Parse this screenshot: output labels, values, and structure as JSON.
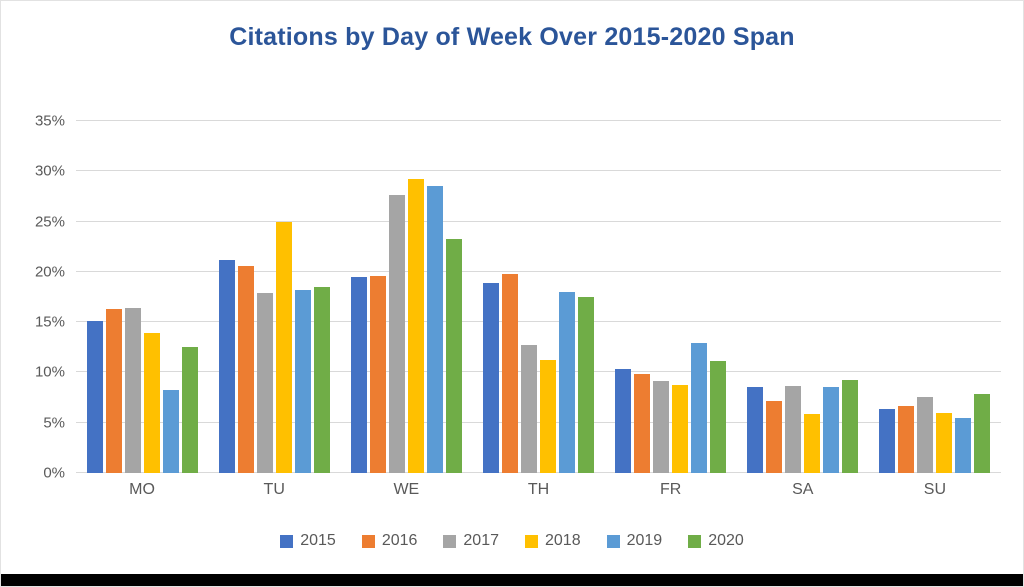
{
  "title": "Citations by Day of Week Over 2015-2020 Span",
  "title_color": "#2b5599",
  "axis_text_color": "#595959",
  "gridline_color": "#d9d9d9",
  "chart_data": {
    "type": "bar",
    "title": "Citations by Day of Week Over 2015-2020 Span",
    "categories": [
      "MO",
      "TU",
      "WE",
      "TH",
      "FR",
      "SA",
      "SU"
    ],
    "series": [
      {
        "name": "2015",
        "color": "#4472C4",
        "values": [
          15.1,
          21.2,
          19.5,
          18.9,
          10.3,
          8.6,
          6.4
        ]
      },
      {
        "name": "2016",
        "color": "#ED7D31",
        "values": [
          16.3,
          20.6,
          19.6,
          19.8,
          9.8,
          7.2,
          6.7
        ]
      },
      {
        "name": "2017",
        "color": "#A5A5A5",
        "values": [
          16.4,
          17.9,
          27.6,
          12.7,
          9.1,
          8.7,
          7.6
        ]
      },
      {
        "name": "2018",
        "color": "#FFC000",
        "values": [
          13.9,
          25.0,
          29.2,
          11.2,
          8.8,
          5.9,
          6.0
        ]
      },
      {
        "name": "2019",
        "color": "#5B9BD5",
        "values": [
          8.3,
          18.2,
          28.5,
          18.0,
          12.9,
          8.6,
          5.5
        ]
      },
      {
        "name": "2020",
        "color": "#70AD47",
        "values": [
          12.5,
          18.5,
          23.3,
          17.5,
          11.1,
          9.2,
          7.9
        ]
      }
    ],
    "xlabel": "",
    "ylabel": "",
    "y_axis": {
      "min": 0,
      "max": 35,
      "step": 5,
      "tick_suffix": "%",
      "tick_labels": [
        "0%",
        "5%",
        "10%",
        "15%",
        "20%",
        "25%",
        "30%",
        "35%"
      ]
    },
    "grid": true,
    "legend_position": "bottom",
    "legend_entries": [
      "2015",
      "2016",
      "2017",
      "2018",
      "2019",
      "2020"
    ]
  }
}
